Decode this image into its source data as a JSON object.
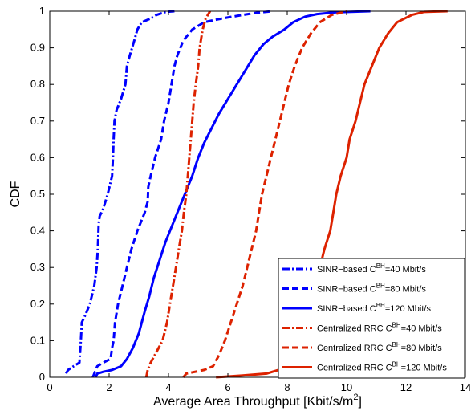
{
  "chart_data": {
    "type": "line",
    "title": "",
    "xlabel": "Average Area Throughput [Kbit/s/m",
    "xlabel_sup": "2",
    "xlabel_end": "]",
    "ylabel": "CDF",
    "xlim": [
      0,
      14
    ],
    "ylim": [
      0,
      1
    ],
    "xticks": [
      "0",
      "2",
      "4",
      "6",
      "8",
      "10",
      "12",
      "14"
    ],
    "yticks": [
      "0",
      "0.1",
      "0.2",
      "0.3",
      "0.4",
      "0.5",
      "0.6",
      "0.7",
      "0.8",
      "0.9",
      "1"
    ],
    "grid": false,
    "legend_position": "bottom-right",
    "series": [
      {
        "name_pre": "SINR−based C",
        "name_sup": "BH",
        "name_post": "=40 Mbit/s",
        "color": "#0000ff",
        "style": "dashdot",
        "points": [
          [
            0.55,
            0.01
          ],
          [
            0.62,
            0.02
          ],
          [
            0.8,
            0.03
          ],
          [
            1.0,
            0.04
          ],
          [
            1.05,
            0.1
          ],
          [
            1.08,
            0.15
          ],
          [
            1.2,
            0.17
          ],
          [
            1.35,
            0.2
          ],
          [
            1.5,
            0.25
          ],
          [
            1.58,
            0.3
          ],
          [
            1.62,
            0.35
          ],
          [
            1.65,
            0.42
          ],
          [
            1.68,
            0.44
          ],
          [
            1.8,
            0.46
          ],
          [
            1.95,
            0.5
          ],
          [
            2.1,
            0.55
          ],
          [
            2.13,
            0.6
          ],
          [
            2.15,
            0.65
          ],
          [
            2.18,
            0.7
          ],
          [
            2.25,
            0.73
          ],
          [
            2.4,
            0.76
          ],
          [
            2.55,
            0.8
          ],
          [
            2.6,
            0.85
          ],
          [
            2.7,
            0.88
          ],
          [
            2.85,
            0.92
          ],
          [
            2.95,
            0.95
          ],
          [
            3.1,
            0.97
          ],
          [
            3.4,
            0.98
          ],
          [
            3.6,
            0.99
          ],
          [
            3.9,
            0.998
          ],
          [
            4.2,
            1.0
          ]
        ]
      },
      {
        "name_pre": "SINR−based C",
        "name_sup": "BH",
        "name_post": "=80 Mbit/s",
        "color": "#0000ff",
        "style": "dash",
        "points": [
          [
            1.45,
            0.0
          ],
          [
            1.5,
            0.01
          ],
          [
            1.6,
            0.03
          ],
          [
            1.8,
            0.04
          ],
          [
            2.05,
            0.05
          ],
          [
            2.1,
            0.08
          ],
          [
            2.15,
            0.1
          ],
          [
            2.2,
            0.15
          ],
          [
            2.3,
            0.2
          ],
          [
            2.45,
            0.25
          ],
          [
            2.6,
            0.3
          ],
          [
            2.75,
            0.35
          ],
          [
            2.95,
            0.4
          ],
          [
            3.2,
            0.45
          ],
          [
            3.3,
            0.48
          ],
          [
            3.32,
            0.52
          ],
          [
            3.4,
            0.55
          ],
          [
            3.55,
            0.6
          ],
          [
            3.75,
            0.65
          ],
          [
            3.85,
            0.7
          ],
          [
            4.0,
            0.75
          ],
          [
            4.1,
            0.8
          ],
          [
            4.2,
            0.85
          ],
          [
            4.3,
            0.88
          ],
          [
            4.5,
            0.92
          ],
          [
            4.8,
            0.95
          ],
          [
            5.2,
            0.97
          ],
          [
            5.8,
            0.98
          ],
          [
            6.5,
            0.99
          ],
          [
            7.0,
            0.996
          ],
          [
            7.5,
            1.0
          ]
        ]
      },
      {
        "name_pre": "SINR−based C",
        "name_sup": "BH",
        "name_post": "=120 Mbit/s",
        "color": "#0000ff",
        "style": "solid",
        "points": [
          [
            1.55,
            0.0
          ],
          [
            1.6,
            0.01
          ],
          [
            1.8,
            0.015
          ],
          [
            2.1,
            0.02
          ],
          [
            2.4,
            0.03
          ],
          [
            2.6,
            0.05
          ],
          [
            2.8,
            0.08
          ],
          [
            3.0,
            0.12
          ],
          [
            3.2,
            0.18
          ],
          [
            3.35,
            0.22
          ],
          [
            3.5,
            0.27
          ],
          [
            3.7,
            0.32
          ],
          [
            3.9,
            0.37
          ],
          [
            4.1,
            0.41
          ],
          [
            4.35,
            0.46
          ],
          [
            4.6,
            0.51
          ],
          [
            4.8,
            0.55
          ],
          [
            5.0,
            0.6
          ],
          [
            5.2,
            0.64
          ],
          [
            5.45,
            0.68
          ],
          [
            5.7,
            0.72
          ],
          [
            6.0,
            0.76
          ],
          [
            6.3,
            0.8
          ],
          [
            6.6,
            0.84
          ],
          [
            6.9,
            0.88
          ],
          [
            7.2,
            0.91
          ],
          [
            7.5,
            0.93
          ],
          [
            7.9,
            0.95
          ],
          [
            8.2,
            0.97
          ],
          [
            8.6,
            0.985
          ],
          [
            9.0,
            0.992
          ],
          [
            9.6,
            0.997
          ],
          [
            10.8,
            1.0
          ]
        ]
      },
      {
        "name_pre": "Centralized RRC C",
        "name_sup": "BH",
        "name_post": "=40 Mbit/s",
        "color": "#dd2200",
        "style": "dashdot",
        "points": [
          [
            3.25,
            0.0
          ],
          [
            3.3,
            0.02
          ],
          [
            3.4,
            0.04
          ],
          [
            3.6,
            0.07
          ],
          [
            3.8,
            0.1
          ],
          [
            3.95,
            0.15
          ],
          [
            4.05,
            0.2
          ],
          [
            4.15,
            0.25
          ],
          [
            4.25,
            0.3
          ],
          [
            4.35,
            0.35
          ],
          [
            4.45,
            0.4
          ],
          [
            4.52,
            0.45
          ],
          [
            4.6,
            0.5
          ],
          [
            4.65,
            0.55
          ],
          [
            4.7,
            0.6
          ],
          [
            4.75,
            0.65
          ],
          [
            4.8,
            0.7
          ],
          [
            4.85,
            0.75
          ],
          [
            4.92,
            0.8
          ],
          [
            5.0,
            0.85
          ],
          [
            5.05,
            0.9
          ],
          [
            5.15,
            0.95
          ],
          [
            5.25,
            0.98
          ],
          [
            5.4,
            1.0
          ]
        ]
      },
      {
        "name_pre": "Centralized RRC C",
        "name_sup": "BH",
        "name_post": "=80 Mbit/s",
        "color": "#dd2200",
        "style": "dash",
        "points": [
          [
            4.5,
            0.0
          ],
          [
            4.6,
            0.01
          ],
          [
            5.2,
            0.02
          ],
          [
            5.5,
            0.03
          ],
          [
            5.7,
            0.06
          ],
          [
            5.9,
            0.1
          ],
          [
            6.1,
            0.15
          ],
          [
            6.3,
            0.2
          ],
          [
            6.5,
            0.25
          ],
          [
            6.65,
            0.3
          ],
          [
            6.8,
            0.35
          ],
          [
            6.95,
            0.4
          ],
          [
            7.05,
            0.45
          ],
          [
            7.15,
            0.5
          ],
          [
            7.3,
            0.55
          ],
          [
            7.45,
            0.6
          ],
          [
            7.6,
            0.65
          ],
          [
            7.75,
            0.7
          ],
          [
            7.9,
            0.75
          ],
          [
            8.05,
            0.8
          ],
          [
            8.25,
            0.85
          ],
          [
            8.5,
            0.9
          ],
          [
            8.8,
            0.94
          ],
          [
            9.1,
            0.97
          ],
          [
            9.5,
            0.99
          ],
          [
            10.0,
            1.0
          ]
        ]
      },
      {
        "name_pre": "Centralized RRC C",
        "name_sup": "BH",
        "name_post": "=120 Mbit/s",
        "color": "#dd2200",
        "style": "solid",
        "points": [
          [
            5.6,
            0.0
          ],
          [
            6.5,
            0.005
          ],
          [
            7.3,
            0.01
          ],
          [
            7.7,
            0.02
          ],
          [
            8.0,
            0.05
          ],
          [
            8.3,
            0.1
          ],
          [
            8.55,
            0.15
          ],
          [
            8.75,
            0.2
          ],
          [
            8.95,
            0.25
          ],
          [
            9.1,
            0.3
          ],
          [
            9.25,
            0.35
          ],
          [
            9.45,
            0.4
          ],
          [
            9.55,
            0.45
          ],
          [
            9.65,
            0.5
          ],
          [
            9.8,
            0.55
          ],
          [
            10.0,
            0.6
          ],
          [
            10.1,
            0.65
          ],
          [
            10.3,
            0.7
          ],
          [
            10.45,
            0.75
          ],
          [
            10.6,
            0.8
          ],
          [
            10.85,
            0.85
          ],
          [
            11.1,
            0.9
          ],
          [
            11.4,
            0.94
          ],
          [
            11.7,
            0.97
          ],
          [
            12.2,
            0.99
          ],
          [
            12.6,
            0.998
          ],
          [
            13.4,
            1.0
          ]
        ]
      }
    ]
  }
}
